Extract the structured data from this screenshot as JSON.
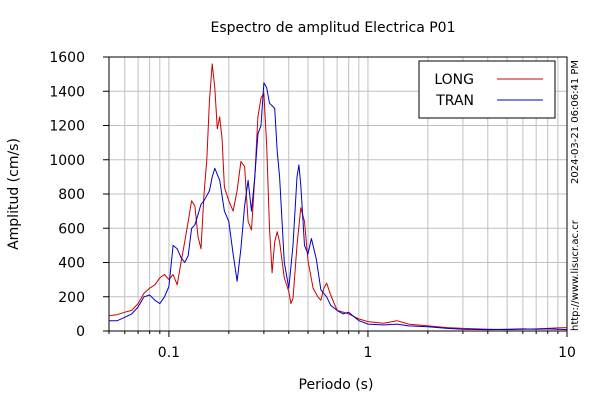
{
  "chart_data": {
    "type": "line",
    "title": "Espectro de amplitud Electrica P01",
    "xlabel": "Periodo (s)",
    "ylabel": "Amplitud (cm/s)",
    "x_scale": "log",
    "xlim": [
      0.05,
      10
    ],
    "ylim": [
      0,
      1600
    ],
    "x_ticks": [
      0.1,
      1,
      10
    ],
    "x_tick_labels": [
      "0.1",
      "1",
      "10"
    ],
    "y_ticks": [
      0,
      200,
      400,
      600,
      800,
      1000,
      1200,
      1400,
      1600
    ],
    "y_tick_labels": [
      "0",
      "200",
      "400",
      "600",
      "800",
      "1000",
      "1200",
      "1400",
      "1600"
    ],
    "grid": true,
    "legend_position": "top-right",
    "side_text_timestamp": "2024-03-21 06:06:41 PM",
    "side_text_url": "http://www.lisucr.ac.cr",
    "series": [
      {
        "name": "LONG",
        "color": "#cc0000",
        "points": [
          [
            0.05,
            90
          ],
          [
            0.055,
            95
          ],
          [
            0.06,
            110
          ],
          [
            0.065,
            120
          ],
          [
            0.07,
            160
          ],
          [
            0.075,
            220
          ],
          [
            0.08,
            250
          ],
          [
            0.085,
            270
          ],
          [
            0.09,
            310
          ],
          [
            0.095,
            330
          ],
          [
            0.1,
            300
          ],
          [
            0.105,
            330
          ],
          [
            0.11,
            270
          ],
          [
            0.115,
            400
          ],
          [
            0.12,
            520
          ],
          [
            0.125,
            640
          ],
          [
            0.13,
            760
          ],
          [
            0.135,
            730
          ],
          [
            0.14,
            550
          ],
          [
            0.145,
            480
          ],
          [
            0.15,
            800
          ],
          [
            0.155,
            1000
          ],
          [
            0.16,
            1350
          ],
          [
            0.165,
            1560
          ],
          [
            0.17,
            1420
          ],
          [
            0.175,
            1180
          ],
          [
            0.18,
            1250
          ],
          [
            0.185,
            1120
          ],
          [
            0.19,
            840
          ],
          [
            0.2,
            760
          ],
          [
            0.21,
            700
          ],
          [
            0.22,
            820
          ],
          [
            0.23,
            990
          ],
          [
            0.24,
            960
          ],
          [
            0.25,
            640
          ],
          [
            0.26,
            590
          ],
          [
            0.27,
            900
          ],
          [
            0.28,
            1250
          ],
          [
            0.29,
            1360
          ],
          [
            0.3,
            1390
          ],
          [
            0.31,
            1080
          ],
          [
            0.32,
            600
          ],
          [
            0.33,
            340
          ],
          [
            0.34,
            520
          ],
          [
            0.35,
            580
          ],
          [
            0.36,
            520
          ],
          [
            0.38,
            310
          ],
          [
            0.4,
            230
          ],
          [
            0.41,
            160
          ],
          [
            0.42,
            190
          ],
          [
            0.44,
            500
          ],
          [
            0.46,
            720
          ],
          [
            0.48,
            640
          ],
          [
            0.5,
            410
          ],
          [
            0.53,
            250
          ],
          [
            0.56,
            200
          ],
          [
            0.58,
            180
          ],
          [
            0.6,
            250
          ],
          [
            0.62,
            280
          ],
          [
            0.65,
            210
          ],
          [
            0.7,
            120
          ],
          [
            0.8,
            100
          ],
          [
            0.9,
            70
          ],
          [
            1.0,
            55
          ],
          [
            1.2,
            45
          ],
          [
            1.4,
            60
          ],
          [
            1.6,
            40
          ],
          [
            2.0,
            30
          ],
          [
            2.5,
            20
          ],
          [
            3.0,
            15
          ],
          [
            4.0,
            10
          ],
          [
            5.0,
            8
          ],
          [
            6.0,
            10
          ],
          [
            7.0,
            12
          ],
          [
            8.0,
            15
          ],
          [
            9.0,
            18
          ],
          [
            10.0,
            20
          ]
        ]
      },
      {
        "name": "TRAN",
        "color": "#0000cc",
        "points": [
          [
            0.05,
            60
          ],
          [
            0.055,
            60
          ],
          [
            0.06,
            80
          ],
          [
            0.065,
            100
          ],
          [
            0.07,
            140
          ],
          [
            0.075,
            200
          ],
          [
            0.08,
            210
          ],
          [
            0.085,
            180
          ],
          [
            0.09,
            160
          ],
          [
            0.095,
            200
          ],
          [
            0.1,
            260
          ],
          [
            0.105,
            500
          ],
          [
            0.11,
            480
          ],
          [
            0.115,
            430
          ],
          [
            0.12,
            400
          ],
          [
            0.125,
            440
          ],
          [
            0.13,
            600
          ],
          [
            0.135,
            620
          ],
          [
            0.14,
            680
          ],
          [
            0.145,
            740
          ],
          [
            0.15,
            760
          ],
          [
            0.16,
            820
          ],
          [
            0.165,
            900
          ],
          [
            0.17,
            950
          ],
          [
            0.18,
            880
          ],
          [
            0.19,
            700
          ],
          [
            0.2,
            640
          ],
          [
            0.21,
            450
          ],
          [
            0.22,
            290
          ],
          [
            0.23,
            480
          ],
          [
            0.24,
            730
          ],
          [
            0.25,
            880
          ],
          [
            0.26,
            700
          ],
          [
            0.27,
            900
          ],
          [
            0.28,
            1150
          ],
          [
            0.29,
            1200
          ],
          [
            0.3,
            1450
          ],
          [
            0.31,
            1420
          ],
          [
            0.32,
            1330
          ],
          [
            0.34,
            1300
          ],
          [
            0.35,
            1050
          ],
          [
            0.36,
            900
          ],
          [
            0.38,
            400
          ],
          [
            0.4,
            250
          ],
          [
            0.42,
            500
          ],
          [
            0.44,
            900
          ],
          [
            0.45,
            970
          ],
          [
            0.46,
            850
          ],
          [
            0.48,
            500
          ],
          [
            0.5,
            450
          ],
          [
            0.52,
            540
          ],
          [
            0.55,
            420
          ],
          [
            0.58,
            240
          ],
          [
            0.62,
            200
          ],
          [
            0.65,
            150
          ],
          [
            0.7,
            120
          ],
          [
            0.75,
            100
          ],
          [
            0.8,
            110
          ],
          [
            0.9,
            60
          ],
          [
            1.0,
            40
          ],
          [
            1.2,
            35
          ],
          [
            1.4,
            40
          ],
          [
            1.6,
            30
          ],
          [
            2.0,
            25
          ],
          [
            2.5,
            15
          ],
          [
            3.0,
            10
          ],
          [
            4.0,
            8
          ],
          [
            5.0,
            10
          ],
          [
            6.0,
            12
          ],
          [
            7.0,
            10
          ],
          [
            8.0,
            12
          ],
          [
            9.0,
            10
          ],
          [
            10.0,
            8
          ]
        ]
      }
    ]
  }
}
